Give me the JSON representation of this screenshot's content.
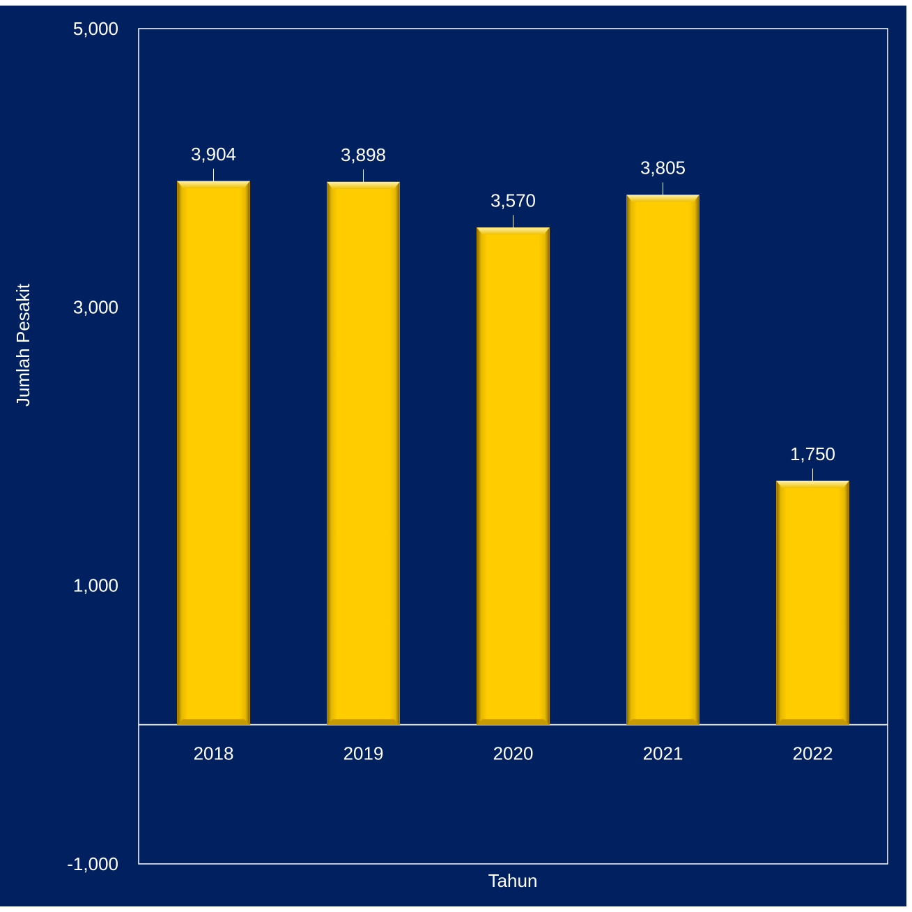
{
  "chart_data": {
    "type": "bar",
    "title": "",
    "xlabel": "Tahun",
    "ylabel": "Jumlah Pesakit",
    "categories": [
      "2018",
      "2019",
      "2020",
      "2021",
      "2022"
    ],
    "values": [
      3904,
      3898,
      3570,
      3805,
      1750
    ],
    "value_labels": [
      "3,904",
      "3,898",
      "3,570",
      "3,805",
      "1,750"
    ],
    "ylim": [
      -1000,
      5000
    ],
    "y_ticks": [
      5000,
      3000,
      1000,
      -1000
    ],
    "y_tick_labels": [
      "5,000",
      "3,000",
      "1,000",
      "-1,000"
    ],
    "grid": false,
    "legend": "none",
    "colors": {
      "background": "#002060",
      "bar": "#FFCC00",
      "bar_edge": "#B38600",
      "axis": "#FFFFFF",
      "text": "#FFFFFF"
    }
  }
}
